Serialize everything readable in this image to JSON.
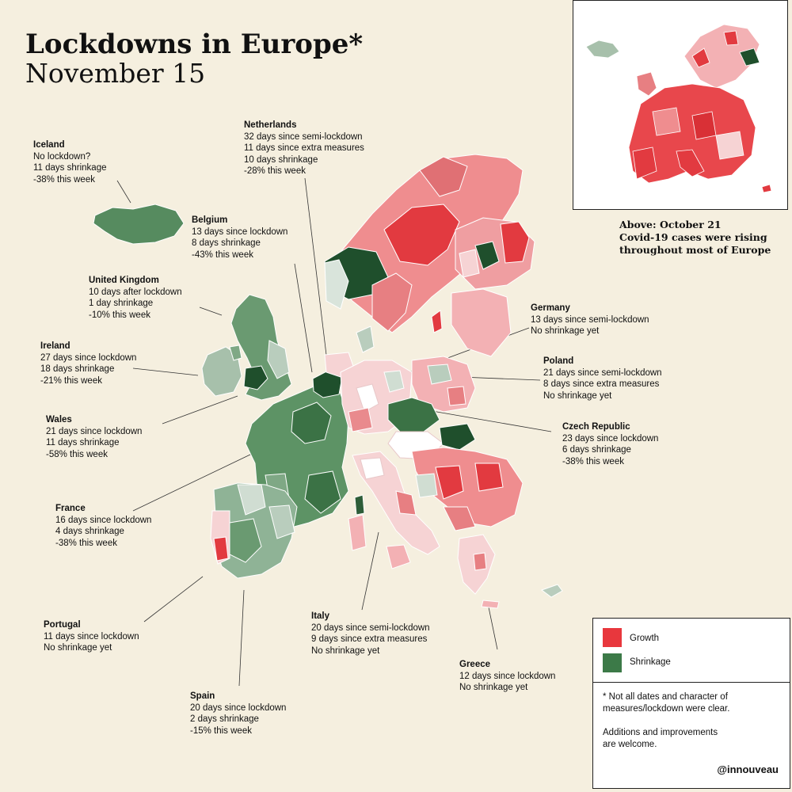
{
  "title": "Lockdowns in Europe*",
  "subtitle": "November 15",
  "inset_caption": [
    "Above: October 21",
    "Covid-19 cases were rising",
    "throughout most of Europe"
  ],
  "colors": {
    "growth": "#e8373d",
    "shrinkage": "#3c7a48",
    "background": "#f5efdf"
  },
  "annotations": {
    "iceland": {
      "name": "Iceland",
      "lines": [
        "No lockdown?",
        "11 days shrinkage",
        "-38% this week"
      ]
    },
    "netherlands": {
      "name": "Netherlands",
      "lines": [
        "32 days since semi-lockdown",
        "11 days since extra measures",
        "10 days shrinkage",
        "-28% this week"
      ]
    },
    "belgium": {
      "name": "Belgium",
      "lines": [
        "13 days since lockdown",
        "8 days shrinkage",
        "-43% this week"
      ]
    },
    "uk": {
      "name": "United Kingdom",
      "lines": [
        "10 days after lockdown",
        "1 day shrinkage",
        "-10% this week"
      ]
    },
    "ireland": {
      "name": "Ireland",
      "lines": [
        "27 days since lockdown",
        "18 days shrinkage",
        "-21% this week"
      ]
    },
    "wales": {
      "name": "Wales",
      "lines": [
        "21 days since lockdown",
        "11 days shrinkage",
        "-58% this week"
      ]
    },
    "france": {
      "name": "France",
      "lines": [
        "16 days since lockdown",
        "4 days shrinkage",
        "-38% this week"
      ]
    },
    "portugal": {
      "name": "Portugal",
      "lines": [
        "11 days since lockdown",
        "No shrinkage yet"
      ]
    },
    "spain": {
      "name": "Spain",
      "lines": [
        "20 days since lockdown",
        "2 days shrinkage",
        "-15% this week"
      ]
    },
    "italy": {
      "name": "Italy",
      "lines": [
        "20 days since semi-lockdown",
        "9 days since extra measures",
        "No shrinkage yet"
      ]
    },
    "greece": {
      "name": "Greece",
      "lines": [
        "12 days since lockdown",
        "No shrinkage yet"
      ]
    },
    "germany": {
      "name": "Germany",
      "lines": [
        "13 days since semi-lockdown",
        "No shrinkage yet"
      ]
    },
    "poland": {
      "name": "Poland",
      "lines": [
        "21 days since semi-lockdown",
        "8 days since extra measures",
        "No shrinkage yet"
      ]
    },
    "czech": {
      "name": "Czech Republic",
      "lines": [
        "23 days since lockdown",
        "6 days shrinkage",
        "-38% this week"
      ]
    }
  },
  "legend": {
    "growth_label": "Growth",
    "shrinkage_label": "Shrinkage",
    "note": [
      "* Not all dates and character of",
      "measures/lockdown were clear.",
      "",
      "Additions and improvements",
      "are welcome."
    ],
    "handle": "@innouveau"
  }
}
